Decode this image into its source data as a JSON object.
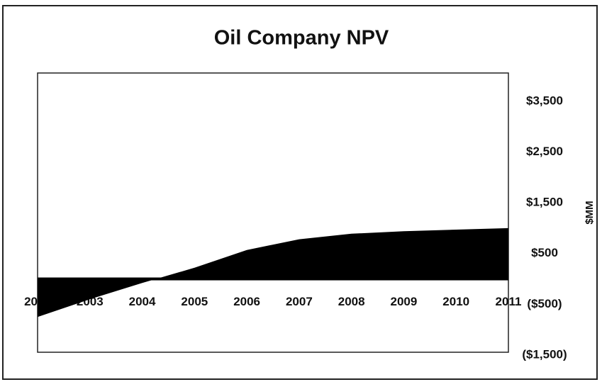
{
  "chart_data": {
    "type": "area",
    "title": "Oil Company NPV",
    "y_label": "$MM",
    "categories": [
      "2002",
      "2003",
      "2004",
      "2005",
      "2006",
      "2007",
      "2008",
      "2009",
      "2010",
      "2011"
    ],
    "values": [
      -750,
      -400,
      -80,
      220,
      570,
      780,
      890,
      940,
      970,
      1000
    ],
    "color": "#000000",
    "ylim": [
      -1500,
      4000
    ],
    "yticks": [
      {
        "value": -1500,
        "label": "($1,500)"
      },
      {
        "value": -500,
        "label": "($500)"
      },
      {
        "value": 500,
        "label": "$500"
      },
      {
        "value": 1500,
        "label": "$1,500"
      },
      {
        "value": 2500,
        "label": "$2,500"
      },
      {
        "value": 3500,
        "label": "$3,500"
      }
    ],
    "grid": false
  }
}
